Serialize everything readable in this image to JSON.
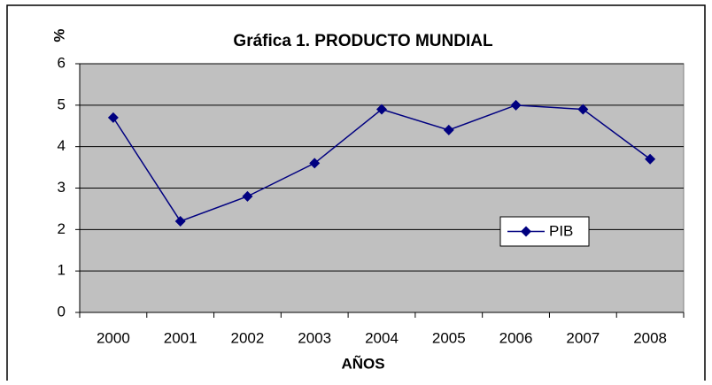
{
  "chart_data": {
    "type": "line",
    "title": "Gráfica 1. PRODUCTO MUNDIAL",
    "y_label": "%",
    "x_label": "AÑOS",
    "categories": [
      "2000",
      "2001",
      "2002",
      "2003",
      "2004",
      "2005",
      "2006",
      "2007",
      "2008"
    ],
    "series": [
      {
        "name": "PIB",
        "color": "#000080",
        "values": [
          4.7,
          2.2,
          2.8,
          3.6,
          4.9,
          4.4,
          5.0,
          4.9,
          3.7
        ]
      }
    ],
    "ylim": [
      0,
      6
    ],
    "yticks": [
      0,
      1,
      2,
      3,
      4,
      5,
      6
    ],
    "grid": true,
    "legend": "right",
    "plot_background": "#c0c0c0"
  }
}
